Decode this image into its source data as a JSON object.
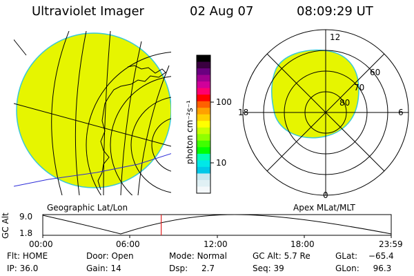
{
  "header": {
    "instrument": "Ultraviolet Imager",
    "date": "02 Aug 07",
    "time": "08:09:29 UT"
  },
  "colors": {
    "aurora_fill": "#e6f500",
    "limb_outline": "#38c8d8",
    "grid_lines": "#000000",
    "orbit_line": "#2a2ad8",
    "time_marker": "#e02020"
  },
  "geo_panel": {
    "label": "Geographic Lat/Lon"
  },
  "polar_panel": {
    "label": "Apex MLat/MLT",
    "mlt_labels": {
      "top": "12",
      "left": "18",
      "right": "6",
      "bottom": "0"
    },
    "lat_labels": [
      "60",
      "70",
      "80"
    ]
  },
  "colorbar": {
    "unit": "photon cm⁻²s⁻¹",
    "ticks": [
      "100",
      "10"
    ],
    "colors": [
      "#000000",
      "#3a0040",
      "#6a0080",
      "#a00090",
      "#d0009a",
      "#ff0070",
      "#ff0000",
      "#ff6000",
      "#ffa000",
      "#ffd000",
      "#ffff00",
      "#c8ff00",
      "#90ff00",
      "#40ff00",
      "#00ff00",
      "#00ffb0",
      "#00e8e8",
      "#00c8e8",
      "#c8e8f0",
      "#e0f0f4",
      "#f4f8fa"
    ]
  },
  "altitude_plot": {
    "ylabel": "GC Alt",
    "yticks": [
      "9.0",
      "1.8"
    ],
    "xticks": [
      "00:00",
      "06:00",
      "12:00",
      "18:00",
      "23:59"
    ],
    "marker_time_fraction": 0.3399
  },
  "status": {
    "row1": [
      {
        "key": "Flt:",
        "value": "HOME"
      },
      {
        "key": "Door:",
        "value": "Open"
      },
      {
        "key": "Mode:",
        "value": "Normal"
      },
      {
        "key": "GC Alt:",
        "value": "5.7 Re"
      },
      {
        "key": "GLat:",
        "value": "−65.4"
      }
    ],
    "row2": [
      {
        "key": "IP:",
        "value": "36.0"
      },
      {
        "key": "Gain:",
        "value": "14"
      },
      {
        "key": "Dsp:",
        "value": "2.7"
      },
      {
        "key": "Seq:",
        "value": "39"
      },
      {
        "key": "GLon:",
        "value": "96.3"
      }
    ]
  }
}
